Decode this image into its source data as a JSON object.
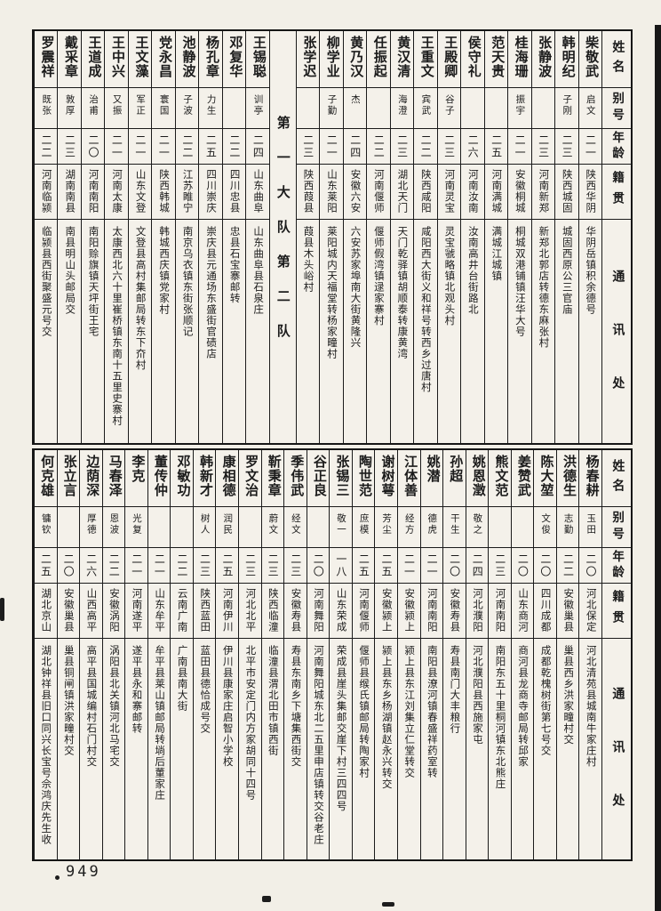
{
  "page": {
    "number": "949"
  },
  "headers": {
    "name": "姓名",
    "alias": "别号",
    "age": "年龄",
    "native": "籍贯",
    "address": "通讯处"
  },
  "table1": {
    "divider": "第一大队第二队",
    "right": [
      {
        "name": "柴敬武",
        "alias": "启文",
        "age": "二一",
        "native": "陕西华阴",
        "address": "华阴岳镇积余德号"
      },
      {
        "name": "韩明纪",
        "alias": "子刚",
        "age": "二三",
        "native": "陕西城固",
        "address": "城固西原公三官庙"
      },
      {
        "name": "张静波",
        "alias": "",
        "age": "二三",
        "native": "河南新郑",
        "address": "新郑北郭店转德东麻张村"
      },
      {
        "name": "桂海珊",
        "alias": "振宇",
        "age": "二一",
        "native": "安徽桐城",
        "address": "桐城双港铺镇汪华大号"
      },
      {
        "name": "范天贵",
        "alias": "",
        "age": "二五",
        "native": "河南满城",
        "address": "满城江城镇"
      },
      {
        "name": "侯守礼",
        "alias": "",
        "age": "二六",
        "native": "河南汝南",
        "address": "汝南高井台街路北"
      },
      {
        "name": "王殿卿",
        "alias": "谷子",
        "age": "二三",
        "native": "河南灵宝",
        "address": "灵宝虢略镇北观头村"
      },
      {
        "name": "王重文",
        "alias": "宾武",
        "age": "二二",
        "native": "陕西咸阳",
        "address": "咸阳西大街义和祥号转西乡过唐村"
      },
      {
        "name": "黄汉清",
        "alias": "海澄",
        "age": "二三",
        "native": "湖北天门",
        "address": "天门乾驿镇胡顺泰转康黄湾"
      },
      {
        "name": "任振起",
        "alias": "",
        "age": "二二",
        "native": "河南偃师",
        "address": "偃师假湾镇逯家寨村"
      },
      {
        "name": "黄乃汉",
        "alias": "杰",
        "age": "二四",
        "native": "安徽六安",
        "address": "六安苏家埠南大街黄隆兴"
      },
      {
        "name": "柳学业",
        "alias": "子勤",
        "age": "二一",
        "native": "山东莱阳",
        "address": "莱阳城内天福堂转杨家疃村"
      },
      {
        "name": "张学迟",
        "alias": "",
        "age": "二三",
        "native": "陕西葭县",
        "address": "葭县木头峪村"
      }
    ],
    "left": [
      {
        "name": "王锡聪",
        "alias": "训亭",
        "age": "二四",
        "native": "山东曲阜",
        "address": "山东曲阜县石泉庄"
      },
      {
        "name": "邓复华",
        "alias": "",
        "age": "二二",
        "native": "四川忠县",
        "address": "忠县石宝寨邮转"
      },
      {
        "name": "杨孔章",
        "alias": "力生",
        "age": "二五",
        "native": "四川崇庆",
        "address": "崇庆县元通场东盛街官碛店"
      },
      {
        "name": "池静波",
        "alias": "子波",
        "age": "二二",
        "native": "江苏睢宁",
        "address": "南京乌衣镇东街张顺记"
      },
      {
        "name": "党永昌",
        "alias": "寰国",
        "age": "二一",
        "native": "陕西韩城",
        "address": "韩城西庆镇党家村"
      },
      {
        "name": "王文藻",
        "alias": "军正",
        "age": "二一",
        "native": "山东文登",
        "address": "文登县高村集邮局转东下夼村"
      },
      {
        "name": "王中兴",
        "alias": "又振",
        "age": "二一",
        "native": "河南太康",
        "address": "太康西北六十里崔桥镇东南十五里史寨村"
      },
      {
        "name": "王道成",
        "alias": "治甫",
        "age": "二〇",
        "native": "河南南阳",
        "address": "南阳赊旗镇天坪街王宅"
      },
      {
        "name": "戴采章",
        "alias": "敦厚",
        "age": "二三",
        "native": "湖南南县",
        "address": "南县明山头邮局交"
      },
      {
        "name": "罗震祥",
        "alias": "既张",
        "age": "二二",
        "native": "河南临颍",
        "address": "临颍县西街聚盛元号交"
      }
    ]
  },
  "table2": {
    "entries": [
      {
        "name": "杨春耕",
        "alias": "玉田",
        "age": "二〇",
        "native": "河北保定",
        "address": "河北清苑县城南牛家庄村"
      },
      {
        "name": "洪德生",
        "alias": "志勤",
        "age": "二二",
        "native": "安徽巢县",
        "address": "巢县西乡洪家疃村交"
      },
      {
        "name": "陈大堃",
        "alias": "文俊",
        "age": "二〇",
        "native": "四川成都",
        "address": "成都乾槐树街第七号交"
      },
      {
        "name": "姜赞武",
        "alias": "",
        "age": "二〇",
        "native": "山东商河",
        "address": "商河县龙商寺邮局转邱家"
      },
      {
        "name": "熊文范",
        "alias": "",
        "age": "二三",
        "native": "河南南阳",
        "address": "南阳东五十里桐河镇东北熊庄"
      },
      {
        "name": "姚恩澂",
        "alias": "敬之",
        "age": "二四",
        "native": "河北濮阳",
        "address": "河北濮阳县西施家屯"
      },
      {
        "name": "孙超",
        "alias": "干生",
        "age": "二〇",
        "native": "安徽寿县",
        "address": "寿县南门大丰粮行"
      },
      {
        "name": "姚潜",
        "alias": "德虎",
        "age": "二一",
        "native": "河南南阳",
        "address": "南阳县潦河镇春盛祥药室转"
      },
      {
        "name": "江体善",
        "alias": "经方",
        "age": "二一",
        "native": "安徽颍上",
        "address": "颍上县东江刘集立仁堂转交"
      },
      {
        "name": "谢树萼",
        "alias": "芳尘",
        "age": "二五",
        "native": "安徽颍上",
        "address": "颍上县东乡杨湖镇赵永兴转交"
      },
      {
        "name": "陶世范",
        "alias": "庶模",
        "age": "二五",
        "native": "河南偃师",
        "address": "偃师县缑氏镇邮局转陶家村"
      },
      {
        "name": "张锡三",
        "alias": "敬一",
        "age": "一八",
        "native": "山东荣成",
        "address": "荣成县崖头集邮交崖下村三四四号"
      },
      {
        "name": "谷正良",
        "alias": "",
        "age": "二〇",
        "native": "河南舞阳",
        "address": "河南舞阳城东北二五里申店镇转交谷老庄"
      },
      {
        "name": "季伟武",
        "alias": "经文",
        "age": "二三",
        "native": "安徽寿县",
        "address": "寿县东南乡下塘集西街交"
      },
      {
        "name": "靳秉章",
        "alias": "蔚文",
        "age": "二三",
        "native": "陕西临潼",
        "address": "临潼县渭北田市镇西街"
      },
      {
        "name": "罗文治",
        "alias": "",
        "age": "二三",
        "native": "河北北平",
        "address": "北平市安定门内方家胡同十四号"
      },
      {
        "name": "康相德",
        "alias": "润民",
        "age": "二五",
        "native": "河南伊川",
        "address": "伊川县康家庄启智小学校"
      },
      {
        "name": "韩新才",
        "alias": "树人",
        "age": "二三",
        "native": "陕西蓝田",
        "address": "蓝田县德恰成号交"
      },
      {
        "name": "邓敏功",
        "alias": "",
        "age": "二二",
        "native": "云南广南",
        "address": "广南县南大街"
      },
      {
        "name": "董传仲",
        "alias": "",
        "age": "二一",
        "native": "山东牟平",
        "address": "牟平县莱山镇邮局转埫后董家庄"
      },
      {
        "name": "李克",
        "alias": "光复",
        "age": "二一",
        "native": "河南遂平",
        "address": "遂平县永和寨邮转"
      },
      {
        "name": "马春泽",
        "alias": "恩波",
        "age": "二二",
        "native": "安徽涡阳",
        "address": "涡阳县北关镇河北马宅交"
      },
      {
        "name": "边荫深",
        "alias": "厚德",
        "age": "二六",
        "native": "山西高平",
        "address": "高平县国城编村石门村交"
      },
      {
        "name": "张立言",
        "alias": "",
        "age": "二〇",
        "native": "安徽巢县",
        "address": "巢县铜闸镇洪家疃村交"
      },
      {
        "name": "何克雄",
        "alias": "镛钦",
        "age": "二五",
        "native": "湖北京山",
        "address": "湖北钟祥县旧口同兴长宝号佘鸿庆先生收"
      }
    ]
  }
}
